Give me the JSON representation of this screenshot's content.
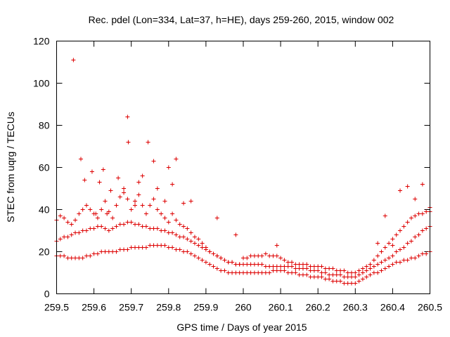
{
  "chart_data": {
    "type": "scatter",
    "title": "Rec. pdel (Lon=334, Lat=37, h=HE), days 259-260, 2015, window 002",
    "xlabel": "GPS time / Days of year 2015",
    "ylabel": "STEC from uqrg / TECUs",
    "xlim": [
      259.5,
      260.5
    ],
    "ylim": [
      0,
      120
    ],
    "xticks": [
      259.5,
      259.6,
      259.7,
      259.8,
      259.9,
      260,
      260.1,
      260.2,
      260.3,
      260.4,
      260.5
    ],
    "xtick_labels": [
      "259.5",
      "259.6",
      "259.7",
      "259.8",
      "259.9",
      "260",
      "260.1",
      "260.2",
      "260.3",
      "260.4",
      "260.5"
    ],
    "yticks": [
      0,
      20,
      40,
      60,
      80,
      100,
      120
    ],
    "ytick_labels": [
      "0",
      "20",
      "40",
      "60",
      "80",
      "100",
      "120"
    ],
    "marker": "+",
    "marker_color": "#dd0000",
    "series": [
      {
        "name": "STEC",
        "x": [
          259.5,
          259.51,
          259.52,
          259.53,
          259.54,
          259.55,
          259.56,
          259.57,
          259.58,
          259.59,
          259.6,
          259.61,
          259.62,
          259.63,
          259.64,
          259.65,
          259.66,
          259.67,
          259.68,
          259.69,
          259.7,
          259.71,
          259.72,
          259.73,
          259.74,
          259.75,
          259.76,
          259.77,
          259.78,
          259.79,
          259.8,
          259.81,
          259.82,
          259.83,
          259.84,
          259.85,
          259.86,
          259.87,
          259.88,
          259.89,
          259.9,
          259.91,
          259.92,
          259.93,
          259.94,
          259.95,
          259.96,
          259.97,
          259.98,
          259.99,
          260.0,
          260.01,
          260.02,
          260.03,
          260.04,
          260.05,
          260.06,
          260.07,
          260.08,
          260.09,
          260.1,
          260.11,
          260.12,
          260.13,
          260.14,
          260.15,
          260.16,
          260.17,
          260.18,
          260.19,
          260.2,
          260.21,
          260.22,
          260.23,
          260.24,
          260.25,
          260.26,
          260.27,
          260.28,
          260.29,
          260.3,
          260.31,
          260.32,
          260.33,
          260.34,
          260.35,
          260.36,
          260.37,
          260.38,
          260.39,
          260.4,
          260.41,
          260.42,
          260.43,
          260.44,
          260.45,
          260.46,
          260.47,
          260.48,
          260.49,
          260.5,
          259.5,
          259.51,
          259.52,
          259.53,
          259.54,
          259.55,
          259.56,
          259.57,
          259.58,
          259.59,
          259.6,
          259.61,
          259.62,
          259.63,
          259.64,
          259.65,
          259.66,
          259.67,
          259.68,
          259.69,
          259.7,
          259.71,
          259.72,
          259.73,
          259.74,
          259.75,
          259.76,
          259.77,
          259.78,
          259.79,
          259.8,
          259.81,
          259.82,
          259.83,
          259.84,
          259.85,
          259.86,
          259.87,
          259.88,
          259.89,
          259.9,
          259.91,
          259.92,
          259.93,
          259.94,
          259.95,
          259.96,
          259.97,
          259.98,
          259.99,
          260.0,
          260.01,
          260.02,
          260.03,
          260.04,
          260.05,
          260.06,
          260.07,
          260.08,
          260.09,
          260.1,
          260.11,
          260.12,
          260.13,
          260.14,
          260.15,
          260.16,
          260.17,
          260.18,
          260.19,
          260.2,
          260.21,
          260.22,
          260.23,
          260.24,
          260.25,
          260.26,
          260.27,
          260.28,
          260.29,
          260.3,
          260.31,
          260.32,
          260.33,
          260.34,
          260.35,
          260.36,
          260.37,
          260.38,
          260.39,
          260.4,
          260.41,
          260.42,
          260.43,
          260.44,
          260.45,
          260.46,
          260.47,
          260.48,
          260.49,
          260.5,
          259.5,
          259.51,
          259.52,
          259.53,
          259.54,
          259.55,
          259.56,
          259.57,
          259.58,
          259.59,
          259.6,
          259.61,
          259.62,
          259.63,
          259.64,
          259.65,
          259.66,
          259.67,
          259.68,
          259.69,
          259.7,
          259.71,
          259.72,
          259.73,
          259.74,
          259.75,
          259.76,
          259.77,
          259.78,
          259.79,
          259.8,
          259.81,
          259.82,
          259.83,
          259.84,
          259.85,
          259.86,
          259.87,
          259.88,
          259.89,
          259.9,
          259.91,
          259.92,
          259.93,
          259.94,
          259.95,
          259.96,
          259.97,
          259.98,
          259.99,
          260.0,
          260.01,
          260.02,
          260.03,
          260.04,
          260.05,
          260.06,
          260.07,
          260.08,
          260.09,
          260.1,
          260.11,
          260.12,
          260.13,
          260.14,
          260.15,
          260.16,
          260.17,
          260.18,
          260.19,
          260.2,
          260.21,
          260.22,
          260.23,
          260.24,
          260.25,
          260.26,
          260.27,
          260.28,
          260.29,
          260.3,
          260.31,
          260.32,
          260.33,
          260.34,
          260.35,
          260.36,
          260.37,
          260.38,
          260.39,
          260.4,
          260.41,
          260.42,
          260.43,
          260.44,
          260.45,
          260.46,
          260.47,
          260.48,
          260.49,
          260.5,
          259.545,
          259.565,
          259.595,
          259.605,
          259.625,
          259.645,
          259.665,
          259.69,
          259.692,
          259.72,
          259.745,
          259.76,
          259.79,
          259.81,
          259.82,
          259.575,
          259.615,
          259.635,
          259.68,
          259.71,
          259.73,
          259.77,
          259.8,
          259.84,
          259.86,
          259.93,
          259.98,
          260.09,
          260.38,
          260.42,
          260.44,
          260.46,
          260.48,
          260.5,
          260.36,
          260.4
        ],
        "y": [
          18,
          18,
          18,
          17,
          17,
          17,
          17,
          17,
          18,
          18,
          19,
          19,
          20,
          20,
          20,
          20,
          20,
          21,
          21,
          21,
          22,
          22,
          22,
          22,
          22,
          23,
          23,
          23,
          23,
          23,
          22,
          22,
          21,
          21,
          20,
          20,
          19,
          18,
          17,
          16,
          15,
          14,
          13,
          12,
          11,
          11,
          10,
          10,
          10,
          10,
          10,
          10,
          10,
          10,
          10,
          10,
          10,
          10,
          11,
          11,
          11,
          11,
          10,
          10,
          10,
          9,
          9,
          9,
          8,
          8,
          8,
          8,
          7,
          7,
          6,
          6,
          6,
          5,
          5,
          5,
          5,
          6,
          7,
          8,
          9,
          10,
          10,
          11,
          12,
          13,
          14,
          15,
          15,
          16,
          16,
          17,
          17,
          18,
          19,
          19,
          20,
          25,
          26,
          27,
          27,
          28,
          29,
          29,
          30,
          30,
          31,
          31,
          32,
          32,
          31,
          30,
          31,
          32,
          33,
          33,
          34,
          34,
          33,
          33,
          32,
          32,
          31,
          31,
          31,
          30,
          30,
          29,
          29,
          28,
          27,
          27,
          26,
          25,
          24,
          23,
          22,
          21,
          20,
          19,
          18,
          17,
          16,
          15,
          15,
          14,
          14,
          14,
          14,
          14,
          14,
          14,
          14,
          13,
          13,
          13,
          13,
          13,
          13,
          13,
          13,
          12,
          12,
          12,
          12,
          11,
          11,
          11,
          10,
          10,
          9,
          9,
          9,
          9,
          8,
          8,
          8,
          8,
          9,
          10,
          11,
          12,
          13,
          14,
          15,
          16,
          17,
          18,
          20,
          21,
          22,
          24,
          25,
          27,
          28,
          30,
          31,
          32,
          35,
          37,
          36,
          34,
          33,
          35,
          38,
          40,
          42,
          40,
          38,
          36,
          40,
          44,
          39,
          36,
          42,
          46,
          48,
          45,
          40,
          44,
          47,
          42,
          38,
          42,
          45,
          40,
          38,
          36,
          34,
          38,
          35,
          33,
          32,
          31,
          29,
          27,
          26,
          24,
          22,
          20,
          19,
          18,
          17,
          16,
          15,
          15,
          14,
          14,
          17,
          17,
          18,
          18,
          18,
          18,
          19,
          18,
          18,
          18,
          17,
          16,
          15,
          15,
          14,
          14,
          14,
          14,
          13,
          13,
          13,
          13,
          12,
          12,
          12,
          11,
          11,
          11,
          10,
          10,
          10,
          11,
          12,
          13,
          14,
          16,
          18,
          20,
          22,
          24,
          26,
          28,
          30,
          32,
          34,
          36,
          37,
          38,
          38,
          39,
          39,
          111,
          64,
          58,
          38,
          59,
          49,
          55,
          84,
          72,
          53,
          72,
          63,
          44,
          52,
          64,
          54,
          53,
          38,
          50,
          42,
          56,
          50,
          60,
          43,
          44,
          36,
          28,
          23,
          37,
          49,
          51,
          45,
          52,
          41,
          24,
          23
        ]
      }
    ]
  }
}
